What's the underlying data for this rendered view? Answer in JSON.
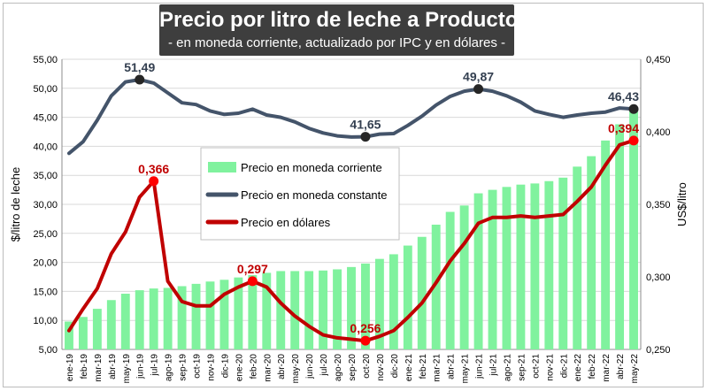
{
  "chart_data": {
    "type": "bar+line",
    "title": "Precio por litro de leche a Productor",
    "subtitle": "- en moneda corriente, actualizado por IPC y en dólares -",
    "ylabel_left": "$/litro de leche",
    "ylabel_right": "US$/litro",
    "ylim_left": [
      5,
      55
    ],
    "ylim_right": [
      0.25,
      0.45
    ],
    "yticks_left": [
      "5,00",
      "10,00",
      "15,00",
      "20,00",
      "25,00",
      "30,00",
      "35,00",
      "40,00",
      "45,00",
      "50,00",
      "55,00"
    ],
    "yticks_right": [
      "0,250",
      "0,300",
      "0,350",
      "0,400",
      "0,450"
    ],
    "categories": [
      "ene-19",
      "feb-19",
      "mar-19",
      "abr-19",
      "may-19",
      "jun-19",
      "jul-19",
      "ago-19",
      "sep-19",
      "oct-19",
      "nov-19",
      "dic-19",
      "ene-20",
      "feb-20",
      "mar-20",
      "abr-20",
      "may-20",
      "jun-20",
      "jul-20",
      "ago-20",
      "sep-20",
      "oct-20",
      "nov-20",
      "dic-20",
      "ene-21",
      "feb-21",
      "mar-21",
      "abr-21",
      "may-21",
      "jun-21",
      "jul-21",
      "ago-21",
      "sep-21",
      "oct-21",
      "nov-21",
      "dic-21",
      "ene-22",
      "feb-22",
      "mar-22",
      "abr-22",
      "may-22"
    ],
    "series": [
      {
        "name": "Precio en moneda corriente",
        "type": "bar",
        "axis": "left",
        "color": "#80f29e",
        "values": [
          9.8,
          10.6,
          12.0,
          13.5,
          14.6,
          15.2,
          15.5,
          15.6,
          15.9,
          16.3,
          16.7,
          17.0,
          17.4,
          17.8,
          18.2,
          18.5,
          18.5,
          18.5,
          18.6,
          18.8,
          19.2,
          19.8,
          20.6,
          21.4,
          22.9,
          24.4,
          26.5,
          28.7,
          29.8,
          31.9,
          32.5,
          33.0,
          33.4,
          33.6,
          34.0,
          34.6,
          36.5,
          38.3,
          41.0,
          43.8,
          46.43
        ]
      },
      {
        "name": "Precio en moneda constante",
        "type": "line",
        "axis": "left",
        "color": "#44546a",
        "values": [
          38.8,
          40.8,
          44.5,
          48.7,
          51.1,
          51.49,
          50.9,
          49.2,
          47.5,
          47.2,
          46.1,
          45.5,
          45.7,
          46.4,
          45.4,
          45.0,
          44.2,
          43.1,
          42.3,
          41.8,
          41.6,
          41.65,
          42.1,
          42.2,
          43.6,
          45.2,
          47.1,
          48.6,
          49.5,
          49.87,
          49.5,
          48.7,
          47.6,
          46.1,
          45.5,
          45.0,
          45.4,
          45.7,
          45.9,
          46.6,
          46.43
        ]
      },
      {
        "name": "Precio en dólares",
        "type": "line",
        "axis": "right",
        "color": "#c00000",
        "values": [
          0.263,
          0.278,
          0.292,
          0.316,
          0.331,
          0.355,
          0.366,
          0.297,
          0.283,
          0.28,
          0.28,
          0.288,
          0.293,
          0.297,
          0.293,
          0.282,
          0.273,
          0.266,
          0.26,
          0.258,
          0.257,
          0.256,
          0.259,
          0.263,
          0.272,
          0.282,
          0.296,
          0.311,
          0.323,
          0.337,
          0.341,
          0.341,
          0.342,
          0.341,
          0.342,
          0.343,
          0.352,
          0.362,
          0.377,
          0.391,
          0.394
        ]
      }
    ],
    "annotations": [
      {
        "series": 1,
        "index": 5,
        "text": "51,49"
      },
      {
        "series": 1,
        "index": 21,
        "text": "41,65"
      },
      {
        "series": 1,
        "index": 29,
        "text": "49,87"
      },
      {
        "series": 1,
        "index": 40,
        "text": "46,43"
      },
      {
        "series": 2,
        "index": 6,
        "text": "0,366"
      },
      {
        "series": 2,
        "index": 13,
        "text": "0,297"
      },
      {
        "series": 2,
        "index": 21,
        "text": "0,256"
      },
      {
        "series": 2,
        "index": 40,
        "text": "0,394"
      }
    ],
    "legend_position": "center",
    "annotation_colors": {
      "left": "#333f50",
      "right": "#c00000"
    }
  }
}
